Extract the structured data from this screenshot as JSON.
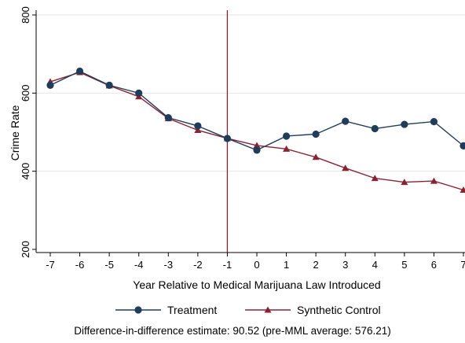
{
  "chart_data": {
    "type": "line",
    "title": "",
    "xlabel": "Year Relative to Medical Marijuana Law Introduced",
    "ylabel": "Crime Rate",
    "xlim": [
      -7,
      7
    ],
    "ylim": [
      200,
      800
    ],
    "x_ticks": [
      -7,
      -6,
      -5,
      -4,
      -3,
      -2,
      -1,
      0,
      1,
      2,
      3,
      4,
      5,
      6,
      7
    ],
    "y_ticks": [
      200,
      400,
      600,
      800
    ],
    "grid": "horizontal",
    "reference_line_x": -1,
    "legend_position": "bottom",
    "x": [
      -7,
      -6,
      -5,
      -4,
      -3,
      -2,
      -1,
      0,
      1,
      2,
      3,
      4,
      5,
      6,
      7
    ],
    "series": [
      {
        "name": "Treatment",
        "color": "#1f3c5a",
        "marker": "circle",
        "values": [
          620,
          656,
          620,
          600,
          537,
          516,
          484,
          454,
          490,
          495,
          528,
          509,
          520,
          527,
          465
        ]
      },
      {
        "name": "Synthetic Control",
        "color": "#8b2232",
        "marker": "triangle",
        "values": [
          629,
          653,
          619,
          591,
          535,
          505,
          484,
          466,
          457,
          436,
          408,
          382,
          372,
          375,
          352
        ]
      }
    ],
    "reference_line_color": "#8b2232",
    "grid_color": "#e6e6e6"
  },
  "caption": "Difference-in-difference estimate: 90.52 (pre-MML average: 576.21)"
}
